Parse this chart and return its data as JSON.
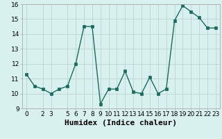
{
  "x": [
    0,
    1,
    2,
    3,
    4,
    5,
    6,
    7,
    8,
    9,
    10,
    11,
    12,
    13,
    14,
    15,
    16,
    17,
    18,
    19,
    20,
    21,
    22,
    23
  ],
  "y": [
    11.3,
    10.5,
    10.3,
    10.0,
    10.3,
    10.5,
    12.0,
    14.5,
    14.5,
    9.3,
    10.3,
    10.3,
    11.5,
    10.1,
    10.0,
    11.1,
    10.0,
    10.3,
    14.9,
    15.9,
    15.5,
    15.1,
    14.4,
    14.4
  ],
  "line_color": "#1a6b5a",
  "marker": "s",
  "marker_size": 2.5,
  "bg_color": "#d8f0ee",
  "grid_color": "#c0d8d4",
  "xlabel": "Humidex (Indice chaleur)",
  "xlabel_fontsize": 8,
  "ylim": [
    9,
    16
  ],
  "xlim": [
    -0.5,
    23.5
  ],
  "yticks": [
    9,
    10,
    11,
    12,
    13,
    14,
    15,
    16
  ],
  "xticks": [
    0,
    2,
    3,
    5,
    6,
    7,
    8,
    9,
    10,
    11,
    12,
    13,
    14,
    15,
    16,
    17,
    18,
    19,
    20,
    21,
    22,
    23
  ],
  "tick_fontsize": 6.5
}
